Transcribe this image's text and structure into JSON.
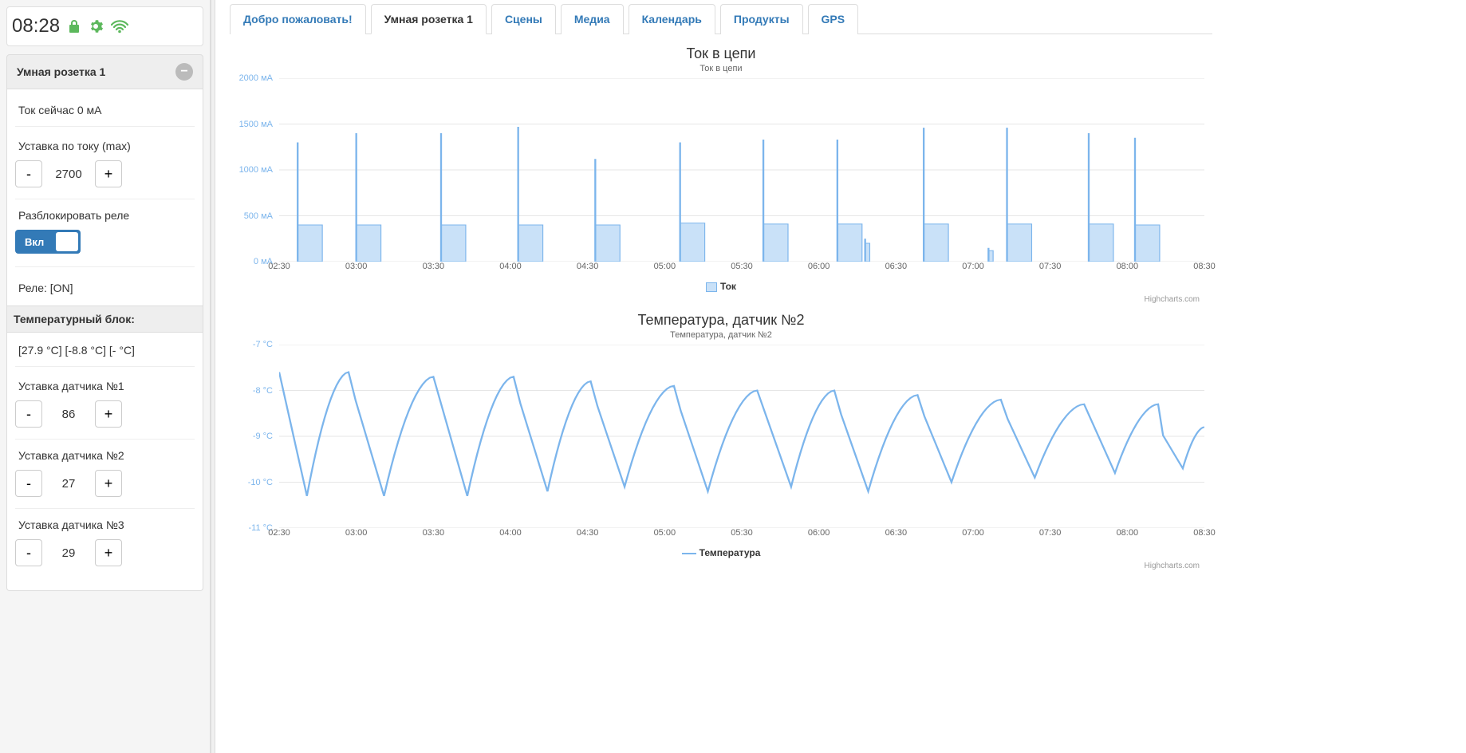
{
  "clock": {
    "time": "08:28"
  },
  "sidebar": {
    "panel_title": "Умная розетка 1",
    "current_now_label": "Ток сейчас 0 мА",
    "setpoint_current_label": "Уставка по току (max)",
    "setpoint_current_value": "2700",
    "unblock_relay_label": "Разблокировать реле",
    "toggle_on": "Вкл",
    "relay_status": "Реле: [ON]",
    "temp_block_header": "Температурный блок:",
    "temp_readings": "[27.9 °C] [-8.8 °C] [- °C]",
    "sensor1_label": "Уставка датчика №1",
    "sensor1_value": "86",
    "sensor2_label": "Уставка датчика №2",
    "sensor2_value": "27",
    "sensor3_label": "Уставка датчика №3",
    "sensor3_value": "29",
    "minus": "-",
    "plus": "+"
  },
  "tabs": [
    {
      "label": "Добро пожаловать!",
      "active": false
    },
    {
      "label": "Умная розетка 1",
      "active": true
    },
    {
      "label": "Сцены",
      "active": false
    },
    {
      "label": "Медиа",
      "active": false
    },
    {
      "label": "Календарь",
      "active": false
    },
    {
      "label": "Продукты",
      "active": false
    },
    {
      "label": "GPS",
      "active": false
    }
  ],
  "chart1": {
    "type": "area-bar",
    "title": "Ток в цепи",
    "subtitle": "Ток в цепи",
    "legend_label": "Ток",
    "series_color": "#7cb5ec",
    "fill_color": "#c9e1f8",
    "yaxis_color": "#7cb5ec",
    "grid_color": "#e6e6e6",
    "ylim": [
      0,
      2000
    ],
    "yticks": [
      {
        "v": 0,
        "label": "0 мА"
      },
      {
        "v": 500,
        "label": "500 мА"
      },
      {
        "v": 1000,
        "label": "1000 мА"
      },
      {
        "v": 1500,
        "label": "1500 мА"
      },
      {
        "v": 2000,
        "label": "2000 мА"
      }
    ],
    "xmin": 2.5,
    "xmax": 8.5,
    "xticks": [
      "02:30",
      "03:00",
      "03:30",
      "04:00",
      "04:30",
      "05:00",
      "05:30",
      "06:00",
      "06:30",
      "07:00",
      "07:30",
      "08:00",
      "08:30"
    ],
    "pulses": [
      {
        "start": 2.62,
        "width": 0.16,
        "spike": 1300,
        "plateau": 400
      },
      {
        "start": 3.0,
        "width": 0.16,
        "spike": 1400,
        "plateau": 400
      },
      {
        "start": 3.55,
        "width": 0.16,
        "spike": 1400,
        "plateau": 400
      },
      {
        "start": 4.05,
        "width": 0.16,
        "spike": 1470,
        "plateau": 400
      },
      {
        "start": 4.55,
        "width": 0.16,
        "spike": 1120,
        "plateau": 400
      },
      {
        "start": 5.1,
        "width": 0.16,
        "spike": 1300,
        "plateau": 420
      },
      {
        "start": 5.64,
        "width": 0.16,
        "spike": 1330,
        "plateau": 410
      },
      {
        "start": 6.12,
        "width": 0.16,
        "spike": 1330,
        "plateau": 410
      },
      {
        "start": 6.3,
        "width": 0.03,
        "spike": 250,
        "plateau": 200
      },
      {
        "start": 6.68,
        "width": 0.16,
        "spike": 1460,
        "plateau": 410
      },
      {
        "start": 7.1,
        "width": 0.03,
        "spike": 150,
        "plateau": 120
      },
      {
        "start": 7.22,
        "width": 0.16,
        "spike": 1460,
        "plateau": 410
      },
      {
        "start": 7.75,
        "width": 0.16,
        "spike": 1400,
        "plateau": 410
      },
      {
        "start": 8.05,
        "width": 0.16,
        "spike": 1350,
        "plateau": 400
      }
    ],
    "credit": "Highcharts.com"
  },
  "chart2": {
    "type": "line",
    "title": "Температура, датчик №2",
    "subtitle": "Температура, датчик №2",
    "legend_label": "Температура",
    "series_color": "#7cb5ec",
    "yaxis_color": "#7cb5ec",
    "grid_color": "#e6e6e6",
    "ylim": [
      -11,
      -7
    ],
    "yticks": [
      {
        "v": -11,
        "label": "-11 °C"
      },
      {
        "v": -10,
        "label": "-10 °C"
      },
      {
        "v": -9,
        "label": "-9 °C"
      },
      {
        "v": -8,
        "label": "-8 °C"
      },
      {
        "v": -7,
        "label": "-7 °C"
      }
    ],
    "xmin": 2.5,
    "xmax": 8.5,
    "xticks": [
      "02:30",
      "03:00",
      "03:30",
      "04:00",
      "04:30",
      "05:00",
      "05:30",
      "06:00",
      "06:30",
      "07:00",
      "07:30",
      "08:00",
      "08:30"
    ],
    "sawtooth": {
      "cycles": [
        {
          "start": 2.5,
          "trough_x": 2.68,
          "crest_x": 2.95,
          "low": -10.3,
          "high": -7.6,
          "start_y": -7.6
        },
        {
          "start": 2.95,
          "trough_x": 3.18,
          "crest_x": 3.5,
          "low": -10.3,
          "high": -7.7
        },
        {
          "start": 3.5,
          "trough_x": 3.72,
          "crest_x": 4.02,
          "low": -10.3,
          "high": -7.7
        },
        {
          "start": 4.02,
          "trough_x": 4.24,
          "crest_x": 4.52,
          "low": -10.2,
          "high": -7.8
        },
        {
          "start": 4.52,
          "trough_x": 4.74,
          "crest_x": 5.06,
          "low": -10.1,
          "high": -7.9
        },
        {
          "start": 5.06,
          "trough_x": 5.28,
          "crest_x": 5.6,
          "low": -10.2,
          "high": -8.0
        },
        {
          "start": 5.6,
          "trough_x": 5.82,
          "crest_x": 6.1,
          "low": -10.1,
          "high": -8.0
        },
        {
          "start": 6.1,
          "trough_x": 6.32,
          "crest_x": 6.64,
          "low": -10.2,
          "high": -8.1
        },
        {
          "start": 6.64,
          "trough_x": 6.86,
          "crest_x": 7.18,
          "low": -10.0,
          "high": -8.2
        },
        {
          "start": 7.18,
          "trough_x": 7.4,
          "crest_x": 7.72,
          "low": -9.9,
          "high": -8.3
        },
        {
          "start": 7.72,
          "trough_x": 7.92,
          "crest_x": 8.2,
          "low": -9.8,
          "high": -8.3
        },
        {
          "start": 8.2,
          "trough_x": 8.36,
          "crest_x": 8.5,
          "low": -9.7,
          "high": -8.8
        }
      ]
    },
    "credit": "Highcharts.com"
  }
}
